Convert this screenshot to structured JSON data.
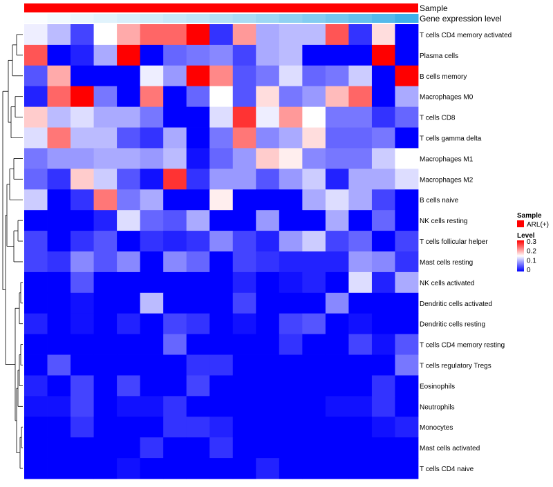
{
  "chart_data": {
    "type": "heatmap",
    "annotation_tracks": [
      "Sample",
      "Gene expression level"
    ],
    "rows": [
      "T cells CD4 memory activated",
      "Plasma cells",
      "B cells memory",
      "Macrophages M0",
      "T cells CD8",
      "T cells gamma delta",
      "Macrophages M1",
      "Macrophages M2",
      "B cells naive",
      "NK cells resting",
      "T cells follicular helper",
      "Mast cells resting",
      "NK cells activated",
      "Dendritic cells activated",
      "Dendritic cells resting",
      "T cells CD4 memory resting",
      "T cells regulatory  Tregs",
      "Eosinophils",
      "Neutrophils",
      "Monocytes",
      "Mast cells activated",
      "T cells CD4 naive"
    ],
    "values": [
      [
        0.14,
        0.11,
        0.04,
        0.15,
        0.2,
        0.24,
        0.24,
        0.3,
        0.03,
        0.21,
        0.1,
        0.11,
        0.11,
        0.25,
        0.03,
        0.17,
        0.0
      ],
      [
        0.25,
        0.0,
        0.02,
        0.1,
        0.3,
        0.0,
        0.06,
        0.07,
        0.08,
        0.04,
        0.1,
        0.11,
        0.0,
        0.0,
        0.0,
        0.3,
        0.0
      ],
      [
        0.05,
        0.2,
        0.0,
        0.0,
        0.0,
        0.14,
        0.09,
        0.3,
        0.22,
        0.05,
        0.07,
        0.13,
        0.06,
        0.07,
        0.12,
        0.0,
        0.3
      ],
      [
        0.02,
        0.24,
        0.3,
        0.07,
        0.0,
        0.23,
        0.0,
        0.06,
        0.15,
        0.05,
        0.17,
        0.07,
        0.09,
        0.19,
        0.24,
        0.0,
        0.1
      ],
      [
        0.18,
        0.11,
        0.13,
        0.1,
        0.1,
        0.07,
        0.0,
        0.0,
        0.13,
        0.27,
        0.14,
        0.21,
        0.15,
        0.07,
        0.07,
        0.03,
        0.06
      ],
      [
        0.13,
        0.23,
        0.11,
        0.11,
        0.05,
        0.03,
        0.1,
        0.0,
        0.07,
        0.23,
        0.08,
        0.1,
        0.17,
        0.06,
        0.06,
        0.07,
        0.0
      ],
      [
        0.07,
        0.09,
        0.09,
        0.1,
        0.1,
        0.09,
        0.11,
        0.01,
        0.06,
        0.09,
        0.18,
        0.16,
        0.08,
        0.07,
        0.07,
        0.12,
        0.15
      ],
      [
        0.06,
        0.03,
        0.18,
        0.12,
        0.05,
        0.01,
        0.27,
        0.03,
        0.09,
        0.09,
        0.05,
        0.09,
        0.12,
        0.02,
        0.1,
        0.1,
        0.13
      ],
      [
        0.12,
        0.0,
        0.03,
        0.23,
        0.07,
        0.1,
        0.0,
        0.0,
        0.16,
        0.0,
        0.0,
        0.0,
        0.1,
        0.13,
        0.1,
        0.04,
        0.0
      ],
      [
        0.0,
        0.0,
        0.0,
        0.02,
        0.13,
        0.06,
        0.05,
        0.1,
        0.0,
        0.0,
        0.09,
        0.0,
        0.0,
        0.1,
        0.0,
        0.06,
        0.0
      ],
      [
        0.04,
        0.0,
        0.03,
        0.05,
        0.0,
        0.03,
        0.02,
        0.03,
        0.08,
        0.04,
        0.02,
        0.09,
        0.12,
        0.04,
        0.06,
        0.0,
        0.04
      ],
      [
        0.04,
        0.03,
        0.08,
        0.05,
        0.08,
        0.0,
        0.08,
        0.06,
        0.0,
        0.04,
        0.03,
        0.02,
        0.02,
        0.02,
        0.09,
        0.08,
        0.03
      ],
      [
        0.0,
        0.0,
        0.05,
        0.0,
        0.0,
        0.0,
        0.0,
        0.0,
        0.0,
        0.02,
        0.0,
        0.01,
        0.02,
        0.0,
        0.13,
        0.02,
        0.1
      ],
      [
        0.0,
        0.0,
        0.01,
        0.0,
        0.0,
        0.11,
        0.0,
        0.0,
        0.0,
        0.04,
        0.0,
        0.0,
        0.0,
        0.08,
        0.0,
        0.0,
        0.0
      ],
      [
        0.02,
        0.0,
        0.01,
        0.0,
        0.02,
        0.0,
        0.04,
        0.03,
        0.0,
        0.01,
        0.0,
        0.04,
        0.05,
        0.0,
        0.01,
        0.0,
        0.0
      ],
      [
        0.0,
        0.0,
        0.0,
        0.0,
        0.0,
        0.0,
        0.06,
        0.0,
        0.0,
        0.0,
        0.0,
        0.03,
        0.0,
        0.0,
        0.04,
        0.01,
        0.05
      ],
      [
        0.0,
        0.05,
        0.0,
        0.0,
        0.0,
        0.0,
        0.0,
        0.03,
        0.03,
        0.0,
        0.0,
        0.0,
        0.0,
        0.0,
        0.0,
        0.0,
        0.07
      ],
      [
        0.02,
        0.0,
        0.04,
        0.0,
        0.04,
        0.0,
        0.0,
        0.04,
        0.0,
        0.0,
        0.0,
        0.0,
        0.0,
        0.0,
        0.0,
        0.03,
        0.0
      ],
      [
        0.01,
        0.01,
        0.04,
        0.0,
        0.01,
        0.01,
        0.03,
        0.0,
        0.0,
        0.0,
        0.0,
        0.0,
        0.0,
        0.01,
        0.01,
        0.03,
        0.0
      ],
      [
        0.0,
        0.0,
        0.03,
        0.0,
        0.0,
        0.0,
        0.03,
        0.03,
        0.02,
        0.0,
        0.0,
        0.0,
        0.0,
        0.0,
        0.0,
        0.01,
        0.02
      ],
      [
        0.0,
        0.0,
        0.0,
        0.0,
        0.0,
        0.03,
        0.0,
        0.0,
        0.03,
        0.0,
        0.0,
        0.0,
        0.0,
        0.0,
        0.0,
        0.0,
        0.0
      ],
      [
        0.0,
        0.0,
        0.0,
        0.0,
        0.01,
        0.0,
        0.0,
        0.0,
        0.0,
        0.0,
        0.02,
        0.0,
        0.0,
        0.0,
        0.0,
        0.0,
        0.0
      ]
    ],
    "value_range": [
      0,
      0.3
    ],
    "gene_expression_level": [
      0.02,
      0.06,
      0.1,
      0.14,
      0.18,
      0.22,
      0.26,
      0.3,
      0.35,
      0.4,
      0.46,
      0.52,
      0.58,
      0.65,
      0.72,
      0.8,
      0.9
    ],
    "colors": {
      "low": "#0000ff",
      "mid": "#ffffff",
      "high": "#ff0000",
      "sample": "#ff0000",
      "expr_low": "#ffffff",
      "expr_high": "#29a7e6"
    },
    "legend": {
      "sample_title": "Sample",
      "sample_entry": "ARL(+)",
      "level_title": "Level",
      "level_ticks": [
        "0.3",
        "0.2",
        "0.1",
        "0"
      ],
      "position": "right"
    },
    "row_dendrogram": true,
    "title": "",
    "xlabel": "",
    "ylabel": ""
  }
}
